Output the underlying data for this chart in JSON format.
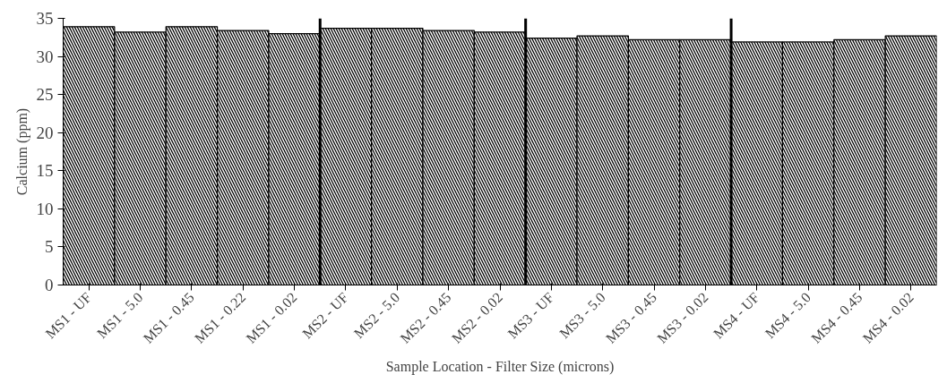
{
  "chart_data": {
    "type": "bar",
    "xlabel": "Sample Location - Filter Size (microns)",
    "ylabel": "Calcium (ppm)",
    "categories": [
      "MS1 - UF",
      "MS1 - 5.0",
      "MS1 - 0.45",
      "MS1 - 0.22",
      "MS1 - 0.02",
      "MS2 - UF",
      "MS2 - 5.0",
      "MS2 - 0.45",
      "MS2 - 0.02",
      "MS3 - UF",
      "MS3 - 5.0",
      "MS3 - 0.45",
      "MS3 - 0.02",
      "MS4 - UF",
      "MS4 - 5.0",
      "MS4 - 0.45",
      "MS4 - 0.02"
    ],
    "series": [
      {
        "color": "#000000",
        "values": [
          33.9,
          33.2,
          33.9,
          33.4,
          33.0,
          33.7,
          33.7,
          33.4,
          33.2,
          32.4,
          32.7,
          32.2,
          32.2,
          31.9,
          31.9,
          32.2,
          32.7
        ]
      }
    ],
    "ylim": [
      0,
      35
    ],
    "yticks": [
      0,
      5,
      10,
      15,
      20,
      25,
      30,
      35
    ],
    "grid": false
  }
}
